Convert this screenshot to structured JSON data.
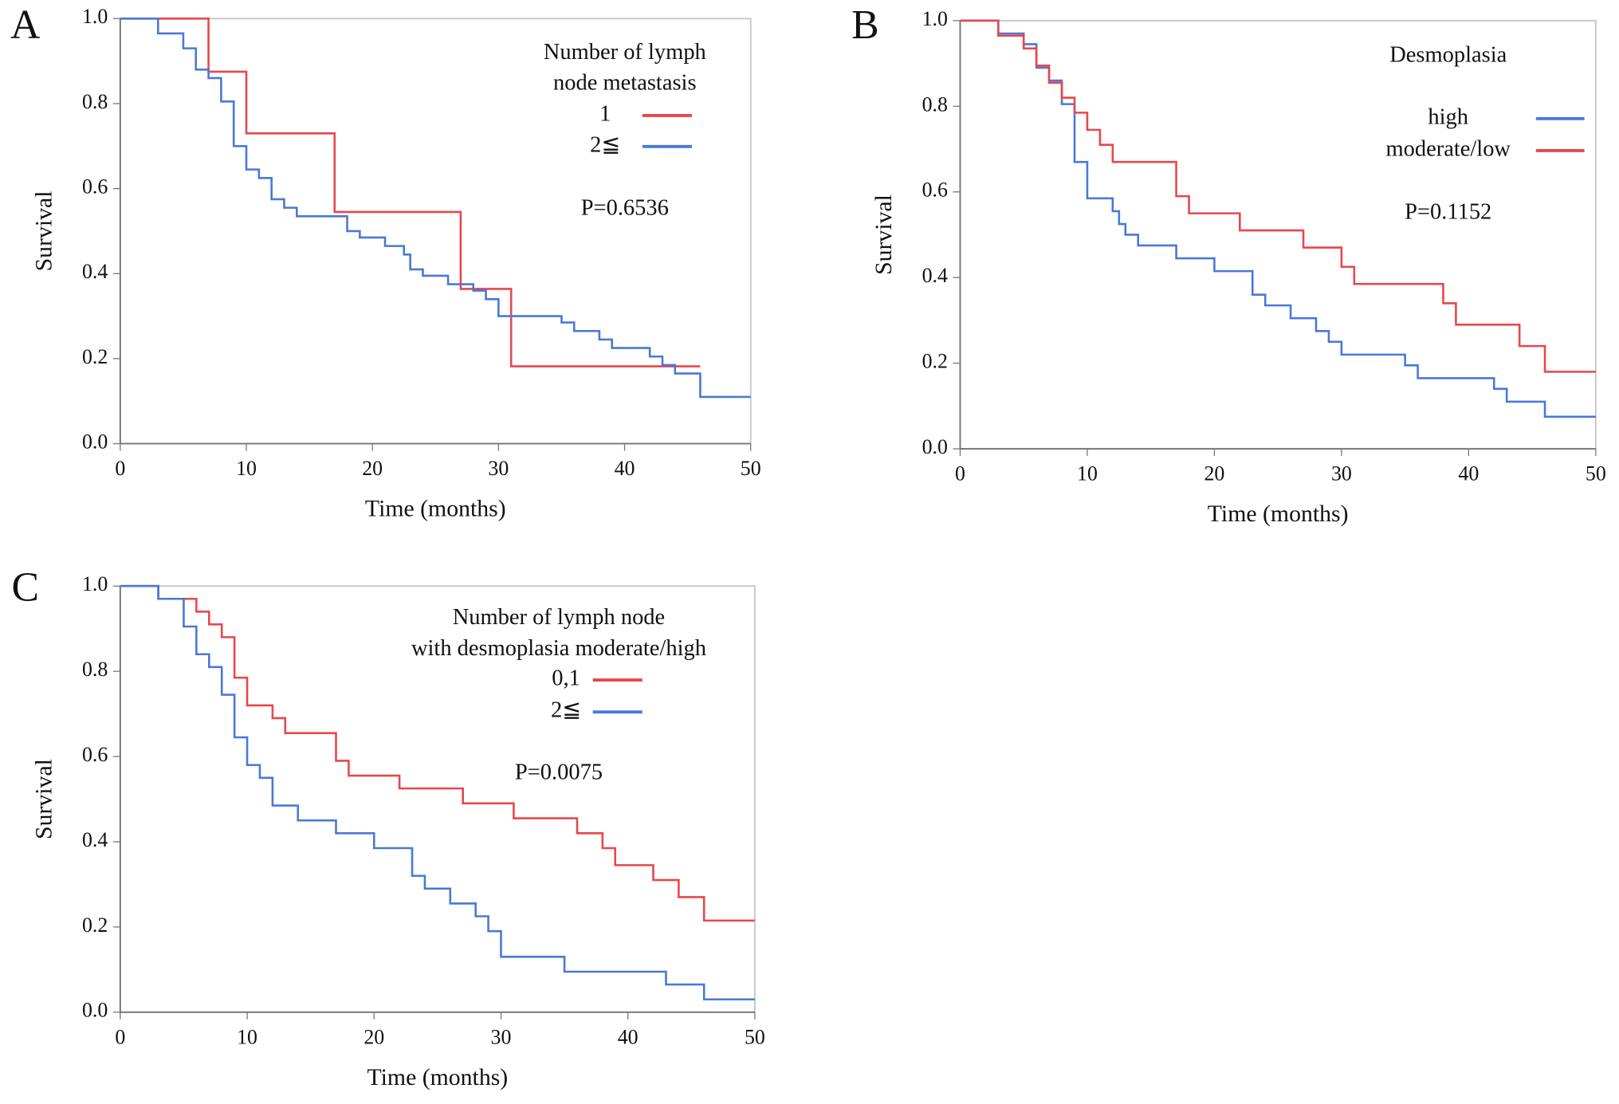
{
  "chart_data": [
    {
      "type": "step",
      "label": "A",
      "legend_title": [
        "Number of lymph",
        "node metastasis"
      ],
      "annotation": "P=0.6536",
      "xlabel": "Time (months)",
      "ylabel": "Survival",
      "xlim": [
        0,
        50
      ],
      "ylim": [
        0,
        1
      ],
      "xticks": [
        0,
        10,
        20,
        30,
        40,
        50
      ],
      "yticks": [
        {
          "value": 0,
          "label": "0.0"
        },
        0.2,
        0.4,
        0.6,
        0.8,
        {
          "value": 1,
          "label": "1.0"
        }
      ],
      "series": [
        {
          "name": "1",
          "color": "#e8474a",
          "x": [
            0,
            7,
            10,
            17,
            27,
            31,
            46
          ],
          "values": [
            1,
            0.875,
            0.73,
            0.545,
            0.364,
            0.182,
            0.182
          ]
        },
        {
          "name": "2≦",
          "color": "#4a78d8",
          "x": [
            0,
            3,
            5,
            6,
            7,
            8,
            9,
            10,
            11,
            12,
            13,
            14,
            18,
            19,
            21,
            22.5,
            23,
            24,
            26,
            28,
            29,
            30,
            35,
            36,
            38,
            39,
            42,
            43,
            44,
            46,
            50
          ],
          "values": [
            1,
            0.965,
            0.93,
            0.88,
            0.86,
            0.805,
            0.7,
            0.645,
            0.625,
            0.575,
            0.555,
            0.535,
            0.5,
            0.485,
            0.465,
            0.445,
            0.41,
            0.395,
            0.375,
            0.36,
            0.34,
            0.3,
            0.285,
            0.265,
            0.245,
            0.225,
            0.205,
            0.185,
            0.165,
            0.11,
            0.11
          ]
        }
      ]
    },
    {
      "type": "step",
      "label": "B",
      "legend_title": [
        "Desmoplasia"
      ],
      "annotation": "P=0.1152",
      "xlabel": "Time (months)",
      "ylabel": "Survival",
      "xlim": [
        0,
        50
      ],
      "ylim": [
        0,
        1
      ],
      "xticks": [
        0,
        10,
        20,
        30,
        40,
        50
      ],
      "yticks": [
        {
          "value": 0,
          "label": "0.0"
        },
        0.2,
        0.4,
        0.6,
        0.8,
        {
          "value": 1,
          "label": "1.0"
        }
      ],
      "series": [
        {
          "name": "high",
          "color": "#4a78d8",
          "x": [
            0,
            3,
            5,
            6,
            7,
            8,
            9,
            10,
            12,
            12.5,
            13,
            14,
            17,
            20,
            23,
            24,
            26,
            28,
            29,
            30,
            35,
            36,
            42,
            43,
            46,
            50
          ],
          "values": [
            1,
            0.97,
            0.945,
            0.89,
            0.86,
            0.805,
            0.67,
            0.585,
            0.555,
            0.525,
            0.5,
            0.475,
            0.445,
            0.415,
            0.36,
            0.335,
            0.305,
            0.275,
            0.25,
            0.22,
            0.195,
            0.165,
            0.14,
            0.11,
            0.075,
            0.075
          ]
        },
        {
          "name": "moderate/low",
          "color": "#e8474a",
          "x": [
            0,
            3,
            5,
            6,
            7,
            8,
            9,
            10,
            11,
            12,
            17,
            18,
            22,
            27,
            30,
            31,
            38,
            39,
            44,
            46,
            50
          ],
          "values": [
            1,
            0.965,
            0.935,
            0.895,
            0.855,
            0.82,
            0.785,
            0.745,
            0.71,
            0.67,
            0.59,
            0.55,
            0.51,
            0.47,
            0.425,
            0.385,
            0.34,
            0.29,
            0.24,
            0.18,
            0.18
          ]
        }
      ]
    },
    {
      "type": "step",
      "label": "C",
      "legend_title": [
        "Number of lymph node",
        "with desmoplasia moderate/high"
      ],
      "annotation": "P=0.0075",
      "xlabel": "Time (months)",
      "ylabel": "Survival",
      "xlim": [
        0,
        50
      ],
      "ylim": [
        0,
        1
      ],
      "xticks": [
        0,
        10,
        20,
        30,
        40,
        50
      ],
      "yticks": [
        {
          "value": 0,
          "label": "0.0"
        },
        0.2,
        0.4,
        0.6,
        0.8,
        {
          "value": 1,
          "label": "1.0"
        }
      ],
      "series": [
        {
          "name": "0,1",
          "color": "#e8474a",
          "x": [
            0,
            3,
            6,
            7,
            8,
            9,
            10,
            12,
            13,
            17,
            18,
            22,
            27,
            31,
            36,
            38,
            39,
            42,
            44,
            46,
            50
          ],
          "values": [
            1,
            0.97,
            0.94,
            0.91,
            0.88,
            0.785,
            0.72,
            0.69,
            0.655,
            0.59,
            0.555,
            0.525,
            0.49,
            0.455,
            0.42,
            0.385,
            0.345,
            0.31,
            0.27,
            0.215,
            0.215
          ]
        },
        {
          "name": "2≦",
          "color": "#4a78d8",
          "x": [
            0,
            3,
            5,
            6,
            7,
            8,
            9,
            10,
            11,
            12,
            14,
            17,
            20,
            23,
            24,
            26,
            28,
            29,
            30,
            35,
            43,
            46,
            50
          ],
          "values": [
            1,
            0.97,
            0.905,
            0.84,
            0.81,
            0.745,
            0.645,
            0.58,
            0.55,
            0.485,
            0.45,
            0.42,
            0.385,
            0.32,
            0.29,
            0.255,
            0.225,
            0.19,
            0.13,
            0.095,
            0.065,
            0.03,
            0.03
          ]
        }
      ]
    }
  ]
}
